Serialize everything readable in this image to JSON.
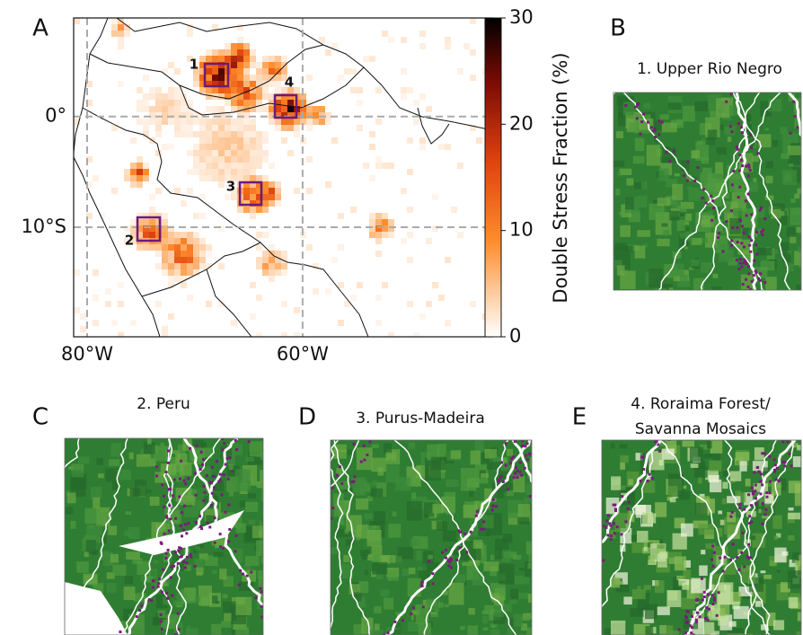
{
  "map": {
    "panel": "A",
    "xlim": [
      -81.25,
      -42.4
    ],
    "ylim": [
      -19.9,
      8.9
    ],
    "xticks": [
      {
        "value": -80,
        "label": "80°W"
      },
      {
        "value": -60,
        "label": "60°W"
      }
    ],
    "yticks": [
      {
        "value": 0,
        "label": "0°"
      },
      {
        "value": -10,
        "label": "10°S"
      }
    ],
    "regions": [
      {
        "label": "1"
      },
      {
        "label": "2"
      },
      {
        "label": "3"
      },
      {
        "label": "4"
      }
    ]
  },
  "colorbar": {
    "label": "Double Stress Fraction (%)",
    "lim": [
      0,
      30
    ],
    "ticks": [
      0,
      10,
      20,
      30
    ]
  },
  "panels": [
    {
      "letter": "B",
      "title": [
        "1. Upper Rio Negro"
      ]
    },
    {
      "letter": "C",
      "title": [
        "2. Peru"
      ]
    },
    {
      "letter": "D",
      "title": [
        "3. Purus-Madeira"
      ]
    },
    {
      "letter": "E",
      "title": [
        "4. Roraima Forest/",
        "Savanna Mosaics"
      ]
    }
  ]
}
